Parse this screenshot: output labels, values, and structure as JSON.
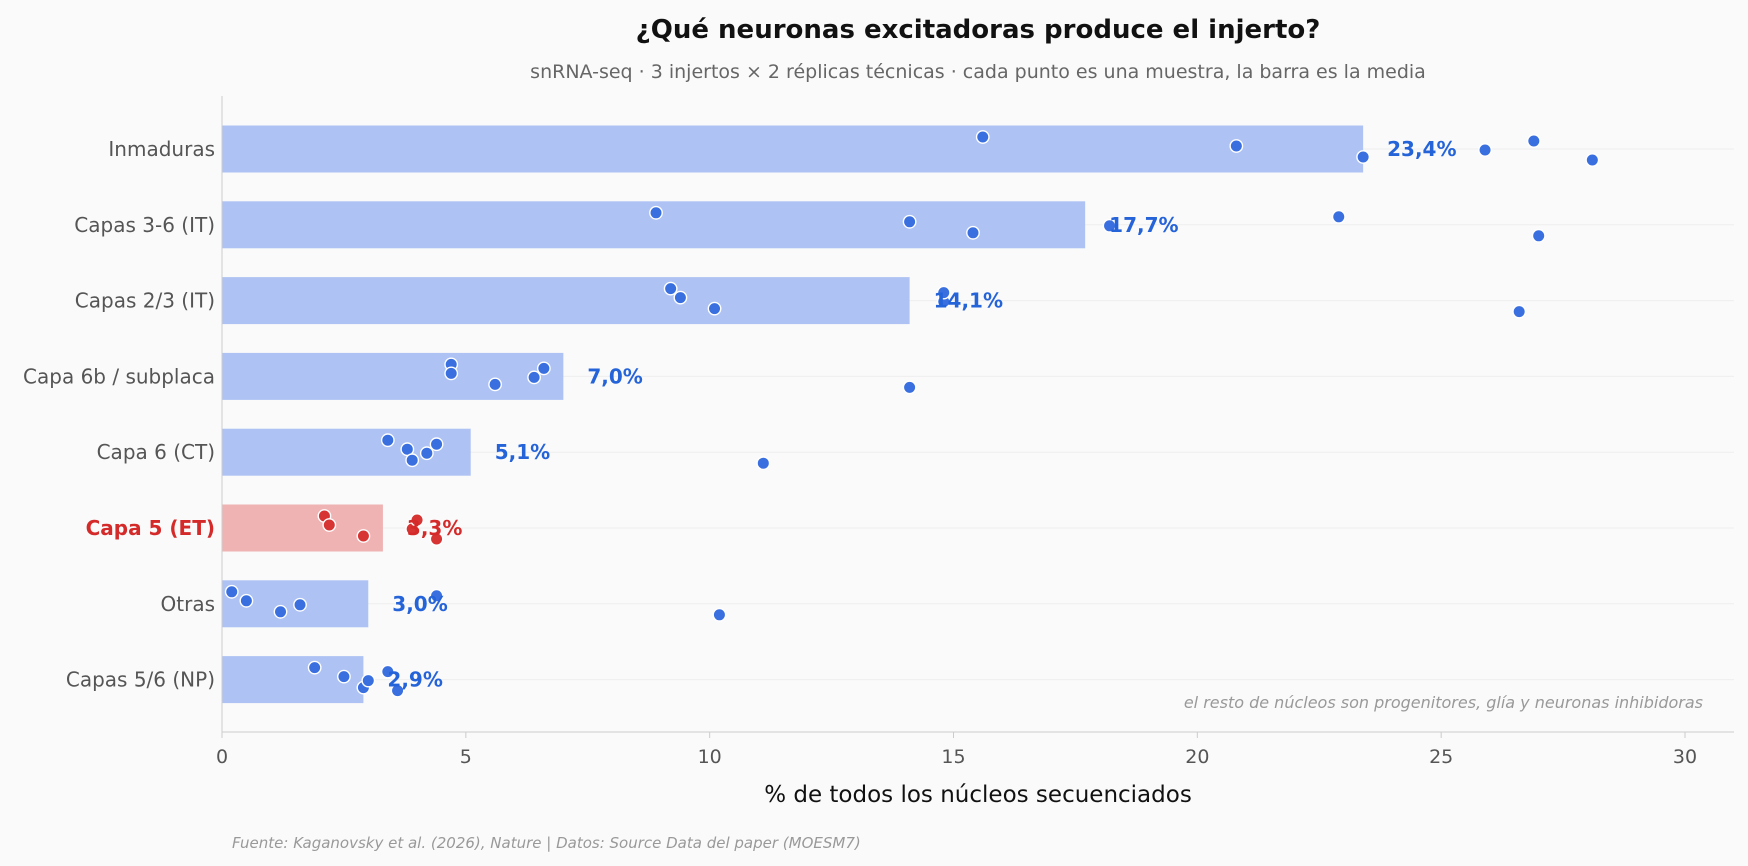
{
  "chart_data": {
    "type": "bar",
    "orientation": "horizontal",
    "title": "¿Qué neuronas excitadoras produce el injerto?",
    "subtitle": "snRNA-seq · 3 injertos × 2 réplicas técnicas · cada punto es una muestra, la barra es la media",
    "xlabel": "% de todos los núcleos secuenciados",
    "ylabel": "",
    "xlim": [
      0,
      31
    ],
    "xticks": [
      "0",
      "5",
      "10",
      "15",
      "20",
      "25",
      "30"
    ],
    "grid": "horizontal",
    "categories": [
      "Inmaduras",
      "Capas 3-6 (IT)",
      "Capas 2/3 (IT)",
      "Capa 6b / subplaca",
      "Capa 6 (CT)",
      "Capa 5 (ET)",
      "Otras",
      "Capas 5/6 (NP)"
    ],
    "highlight": "Capa 5 (ET)",
    "values": [
      23.4,
      17.7,
      14.1,
      7.0,
      5.1,
      3.3,
      3.0,
      2.9
    ],
    "value_labels": [
      "23,4%",
      "17,7%",
      "14,1%",
      "7,0%",
      "5,1%",
      "3,3%",
      "3,0%",
      "2,9%"
    ],
    "points": [
      [
        15.6,
        20.8,
        23.4,
        25.9,
        26.9,
        28.1
      ],
      [
        8.9,
        14.1,
        15.4,
        18.2,
        22.9,
        27.0
      ],
      [
        9.2,
        9.4,
        10.1,
        14.8,
        14.8,
        26.6
      ],
      [
        4.7,
        4.7,
        5.6,
        6.4,
        6.6,
        14.1
      ],
      [
        3.4,
        3.8,
        3.9,
        4.2,
        4.4,
        11.1
      ],
      [
        2.1,
        2.2,
        2.9,
        3.9,
        4.0,
        4.4
      ],
      [
        0.2,
        0.5,
        1.2,
        1.6,
        4.4,
        10.2
      ],
      [
        1.9,
        2.5,
        2.9,
        3.0,
        3.4,
        3.6
      ]
    ],
    "annotation": "el resto de núcleos son progenitores, glía y neuronas inhibidoras",
    "source": "Fuente: Kaganovsky et al. (2026), Nature | Datos: Source Data del paper (MOESM7)",
    "colors": {
      "bar": "#aec3f4",
      "point": "#3a6fe0",
      "label": "#2563d9",
      "highlight_bar": "#efb3b3",
      "highlight_point": "#d73434",
      "highlight_label": "#d42a2a",
      "axis_text": "#555555",
      "title": "#111111",
      "subtitle": "#666666",
      "note": "#999999",
      "grid": "#eeeeee",
      "background": "#fafafa"
    }
  }
}
